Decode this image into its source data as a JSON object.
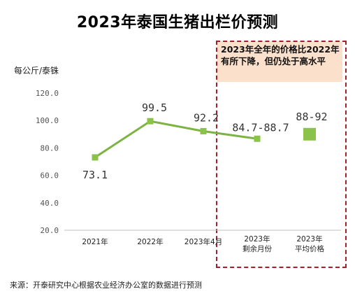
{
  "title": "2023年泰国生猪出栏价预测",
  "unit_label": "每公斤/泰铢",
  "annotation": "2023年全年的价格比2022年有所下降，但仍处于高水平",
  "source": "来源：开泰研究中心根据农业经济办公室的数据进行预测",
  "colors": {
    "series": "#7cb342",
    "marker": "#8bc34a",
    "highlight_box": "#a3202a",
    "annotation_bg": "#fbe0cc",
    "axis": "#bfbfbf"
  },
  "chart_data": {
    "type": "line",
    "title": "2023年泰国生猪出栏价预测",
    "ylabel": "每公斤/泰铢",
    "xlabel": "",
    "ylim": [
      20,
      120
    ],
    "yticks": [
      "20.0",
      "40.0",
      "60.0",
      "80.0",
      "100.0",
      "120.0"
    ],
    "grid": false,
    "categories": [
      [
        "2021年"
      ],
      [
        "2022年"
      ],
      [
        "2023年4月"
      ],
      [
        "2023年",
        "剩余月份"
      ],
      [
        "2023年",
        "平均价格"
      ]
    ],
    "series": [
      {
        "values": [
          73.1,
          99.5,
          92.2,
          86.7,
          null
        ],
        "point_labels": [
          "73.1",
          "99.5",
          "92.2",
          "84.7-88.7",
          ""
        ]
      },
      {
        "marker_only": true,
        "values": [
          null,
          null,
          null,
          null,
          90
        ],
        "point_labels": [
          "",
          "",
          "",
          "",
          "88-92"
        ]
      }
    ]
  }
}
